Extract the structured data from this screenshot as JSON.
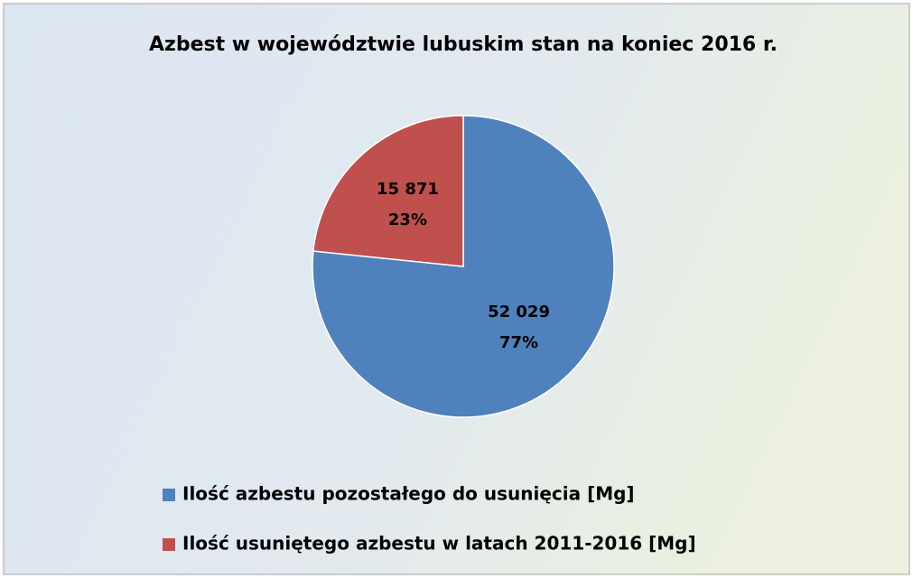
{
  "chart_data": {
    "type": "pie",
    "title": "Azbest w województwie lubuskim stan na koniec 2016 r.",
    "categories": [
      "Ilość azbestu pozostałego do usunięcia [Mg]",
      "Ilość usuniętego azbestu w latach 2011-2016 [Mg]"
    ],
    "values": [
      52029,
      15871
    ],
    "value_labels": [
      "52 029",
      "15 871"
    ],
    "percent_labels": [
      "77%",
      "23%"
    ],
    "colors": [
      "#4f81bd",
      "#c0504d"
    ],
    "legend": "bottom"
  }
}
